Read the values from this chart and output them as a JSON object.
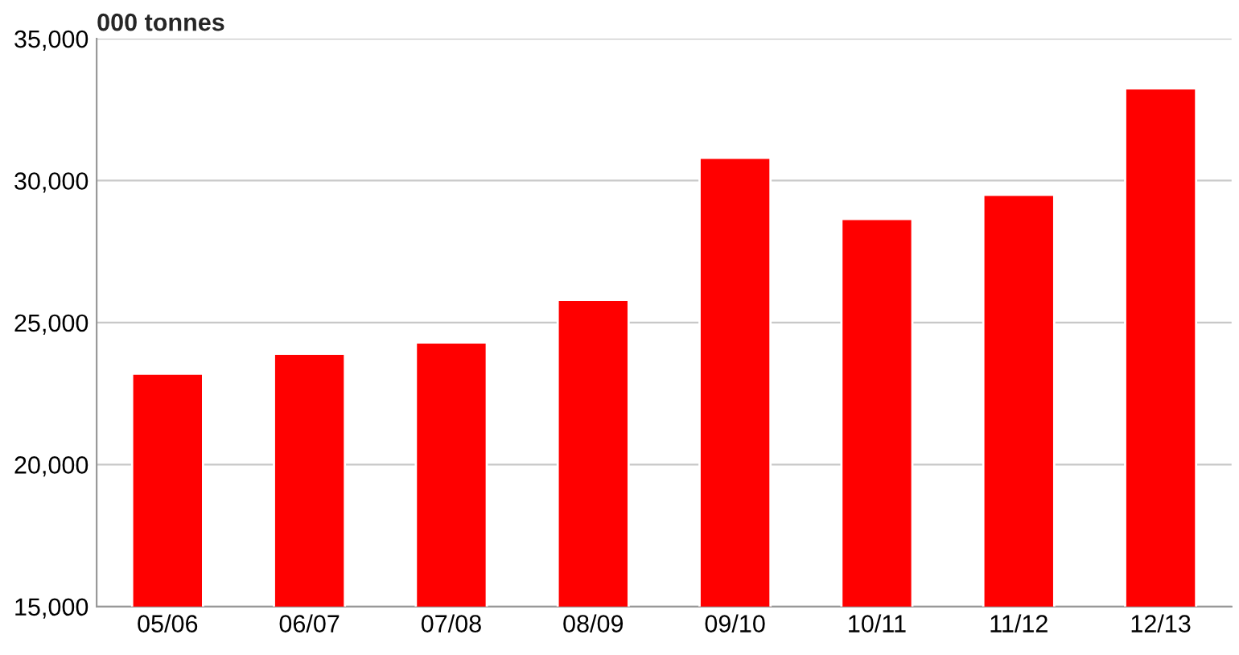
{
  "chart_data": {
    "type": "bar",
    "ylabel": "000 tonnes",
    "categories": [
      "05/06",
      "06/07",
      "07/08",
      "08/09",
      "09/10",
      "10/11",
      "11/12",
      "12/13"
    ],
    "values": [
      23200,
      23900,
      24300,
      25800,
      30800,
      28650,
      29500,
      33250
    ],
    "color": "#ff0000",
    "ylim": [
      15000,
      35000
    ],
    "yticks": [
      {
        "value": 15000,
        "label": "15,000"
      },
      {
        "value": 20000,
        "label": "20,000"
      },
      {
        "value": 25000,
        "label": "25,000"
      },
      {
        "value": 30000,
        "label": "30,000"
      },
      {
        "value": 35000,
        "label": "35,000"
      }
    ],
    "grid": "y"
  }
}
